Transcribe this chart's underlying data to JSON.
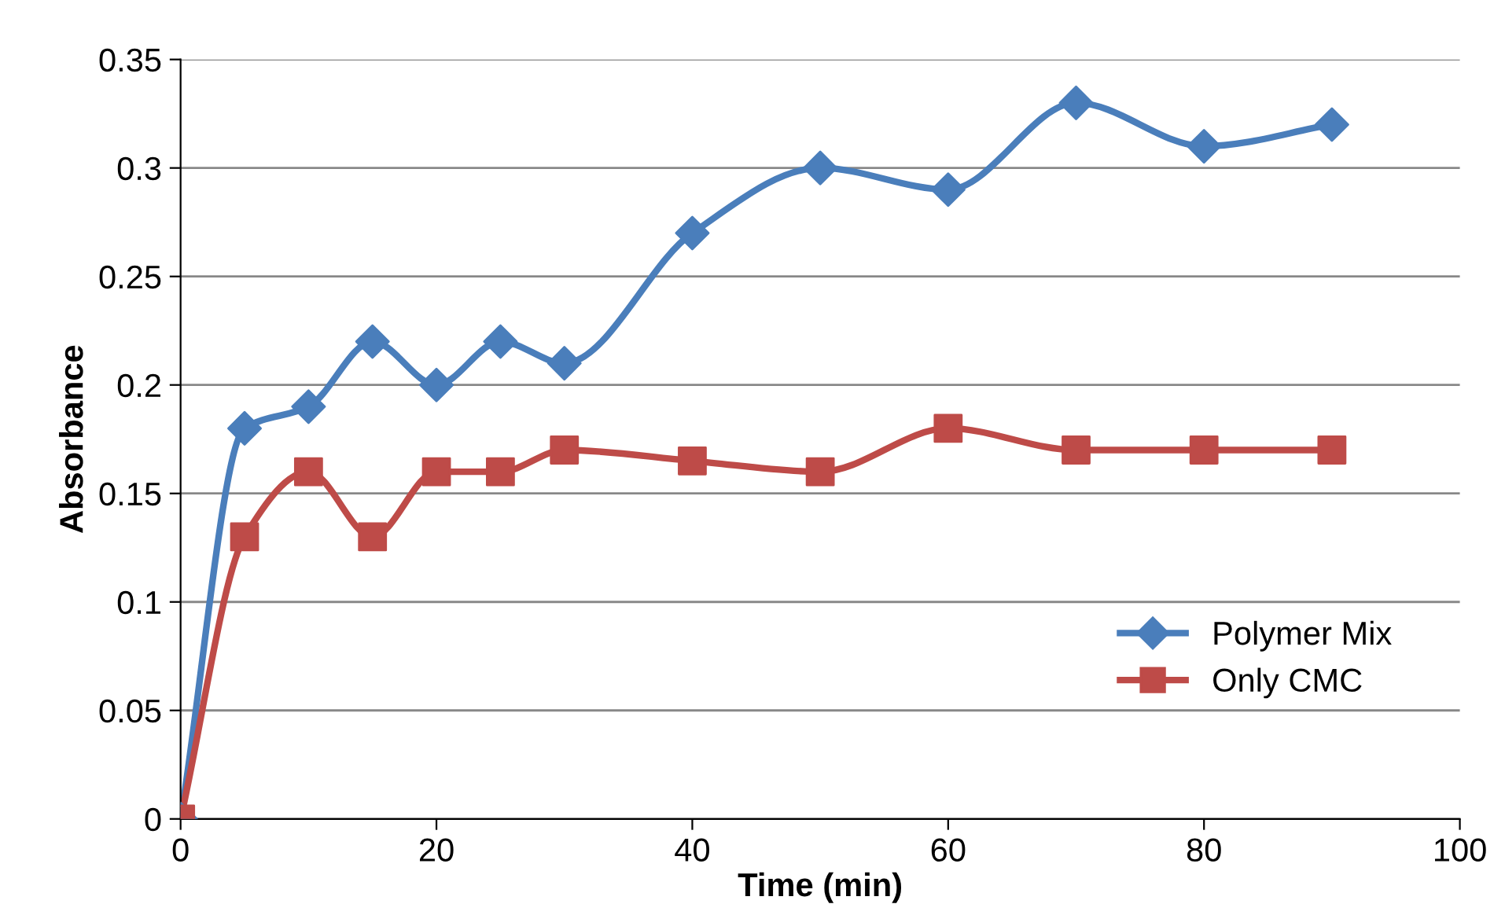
{
  "chart_data": {
    "type": "line",
    "xlabel": "Time (min)",
    "ylabel": "Absorbance",
    "x": [
      0,
      5,
      10,
      15,
      20,
      25,
      30,
      40,
      50,
      60,
      70,
      80,
      90
    ],
    "series": [
      {
        "name": "Polymer Mix",
        "color": "#4a7ebb",
        "marker": "diamond",
        "values": [
          0,
          0.18,
          0.19,
          0.22,
          0.2,
          0.22,
          0.21,
          0.27,
          0.3,
          0.29,
          0.33,
          0.31,
          0.32
        ]
      },
      {
        "name": "Only CMC",
        "color": "#be4b48",
        "marker": "square",
        "values": [
          0,
          0.13,
          0.16,
          0.13,
          0.16,
          0.16,
          0.17,
          0.165,
          0.16,
          0.18,
          0.17,
          0.17,
          0.17
        ]
      }
    ],
    "xlim": [
      0,
      100
    ],
    "xticks": [
      0,
      20,
      40,
      60,
      80,
      100
    ],
    "ylim": [
      0,
      0.35
    ],
    "yticks": [
      0,
      0.05,
      0.1,
      0.15,
      0.2,
      0.25,
      0.3,
      0.35
    ],
    "grid": "y",
    "legend": "bottom right",
    "line_style": "solid"
  }
}
